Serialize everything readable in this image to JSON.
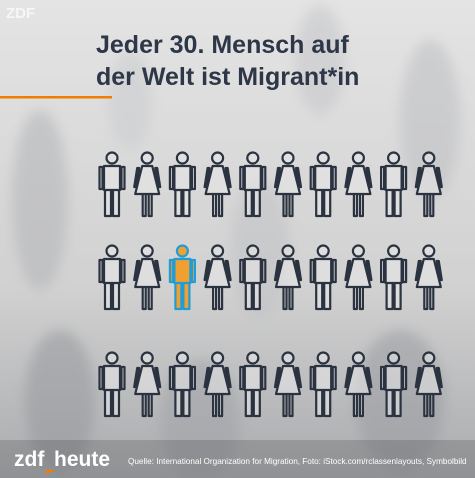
{
  "corner_logo": "ZDF",
  "title": {
    "lines": [
      "Jeder 30. Mensch auf",
      "der Welt ist Migrant*in"
    ]
  },
  "footer": {
    "logo_left": "zdf",
    "logo_right": "heute",
    "source": "Quelle: International Organization for Migration, Foto: iStock.com/rclassenlayouts, Symbolbild"
  }
}
